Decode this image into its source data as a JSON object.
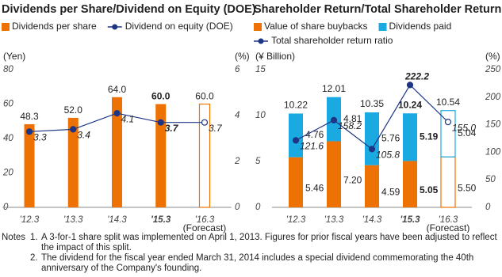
{
  "chart_data": [
    {
      "type": "bar",
      "title": "Dividends per Share/Dividend on Equity (DOE)",
      "y_label": "(Yen)",
      "y2_label": "(%)",
      "categories": [
        "'12.3",
        "'13.3",
        "'14.3",
        "'15.3",
        "'16.3"
      ],
      "forecast_label": "(Forecast)",
      "series": [
        {
          "name": "Dividends per share",
          "color": "#ee7203",
          "values": [
            48.3,
            52.0,
            64.0,
            60.0,
            60.0
          ],
          "value_labels": [
            "48.3",
            "52.0",
            "64.0",
            "60.0",
            "60.0"
          ]
        },
        {
          "name": "Dividend on equity (DOE)",
          "color": "#1d3585",
          "type": "line",
          "axis": "y2",
          "values": [
            3.3,
            3.4,
            4.1,
            3.7,
            3.7
          ]
        }
      ],
      "ylim": [
        0,
        80
      ],
      "yticks": [
        0,
        20,
        40,
        60,
        80
      ],
      "y2lim": [
        0,
        6
      ],
      "y2ticks": [
        0,
        2,
        4,
        6
      ]
    },
    {
      "type": "stacked-bar",
      "title": "Shareholder Return/Total Shareholder Return Ratio",
      "y_label": "(¥ Billion)",
      "y2_label": "(%)",
      "categories": [
        "'12.3",
        "'13.3",
        "'14.3",
        "'15.3",
        "'16.3"
      ],
      "forecast_label": "(Forecast)",
      "series": [
        {
          "name": "Value of share buybacks",
          "color": "#ee7203",
          "values": [
            5.46,
            7.2,
            4.59,
            5.05,
            5.5
          ],
          "value_labels": [
            "5.46",
            "7.20",
            "4.59",
            "5.05",
            "5.50"
          ]
        },
        {
          "name": "Dividends paid",
          "color": "#1ba9e1",
          "values": [
            4.76,
            4.81,
            5.76,
            5.19,
            5.04
          ]
        },
        {
          "name": "Total shareholder return ratio",
          "color": "#1d3585",
          "type": "line",
          "axis": "y2",
          "values": [
            121.6,
            158.2,
            105.8,
            222.2,
            155.0
          ],
          "value_labels": [
            "121.6",
            "158.2",
            "105.8",
            "222.2",
            "155.0"
          ]
        }
      ],
      "totals": [
        10.22,
        12.01,
        10.35,
        10.24,
        10.54
      ],
      "ylim": [
        0,
        15
      ],
      "yticks": [
        0,
        5,
        10,
        15
      ],
      "y2lim": [
        0,
        250
      ],
      "y2ticks": [
        0,
        50,
        100,
        150,
        200,
        250
      ]
    }
  ],
  "notes": {
    "heading": "Notes",
    "items": [
      {
        "number": "1.",
        "text": "A 3-for-1 share split was implemented on April 1, 2013. Figures for prior fiscal years have been adjusted to reflect the impact of this split."
      },
      {
        "number": "2.",
        "text": "The dividend for the fiscal year ended March 31, 2014 includes a special dividend commemorating the 40th anniversary of the Company's founding."
      }
    ]
  }
}
